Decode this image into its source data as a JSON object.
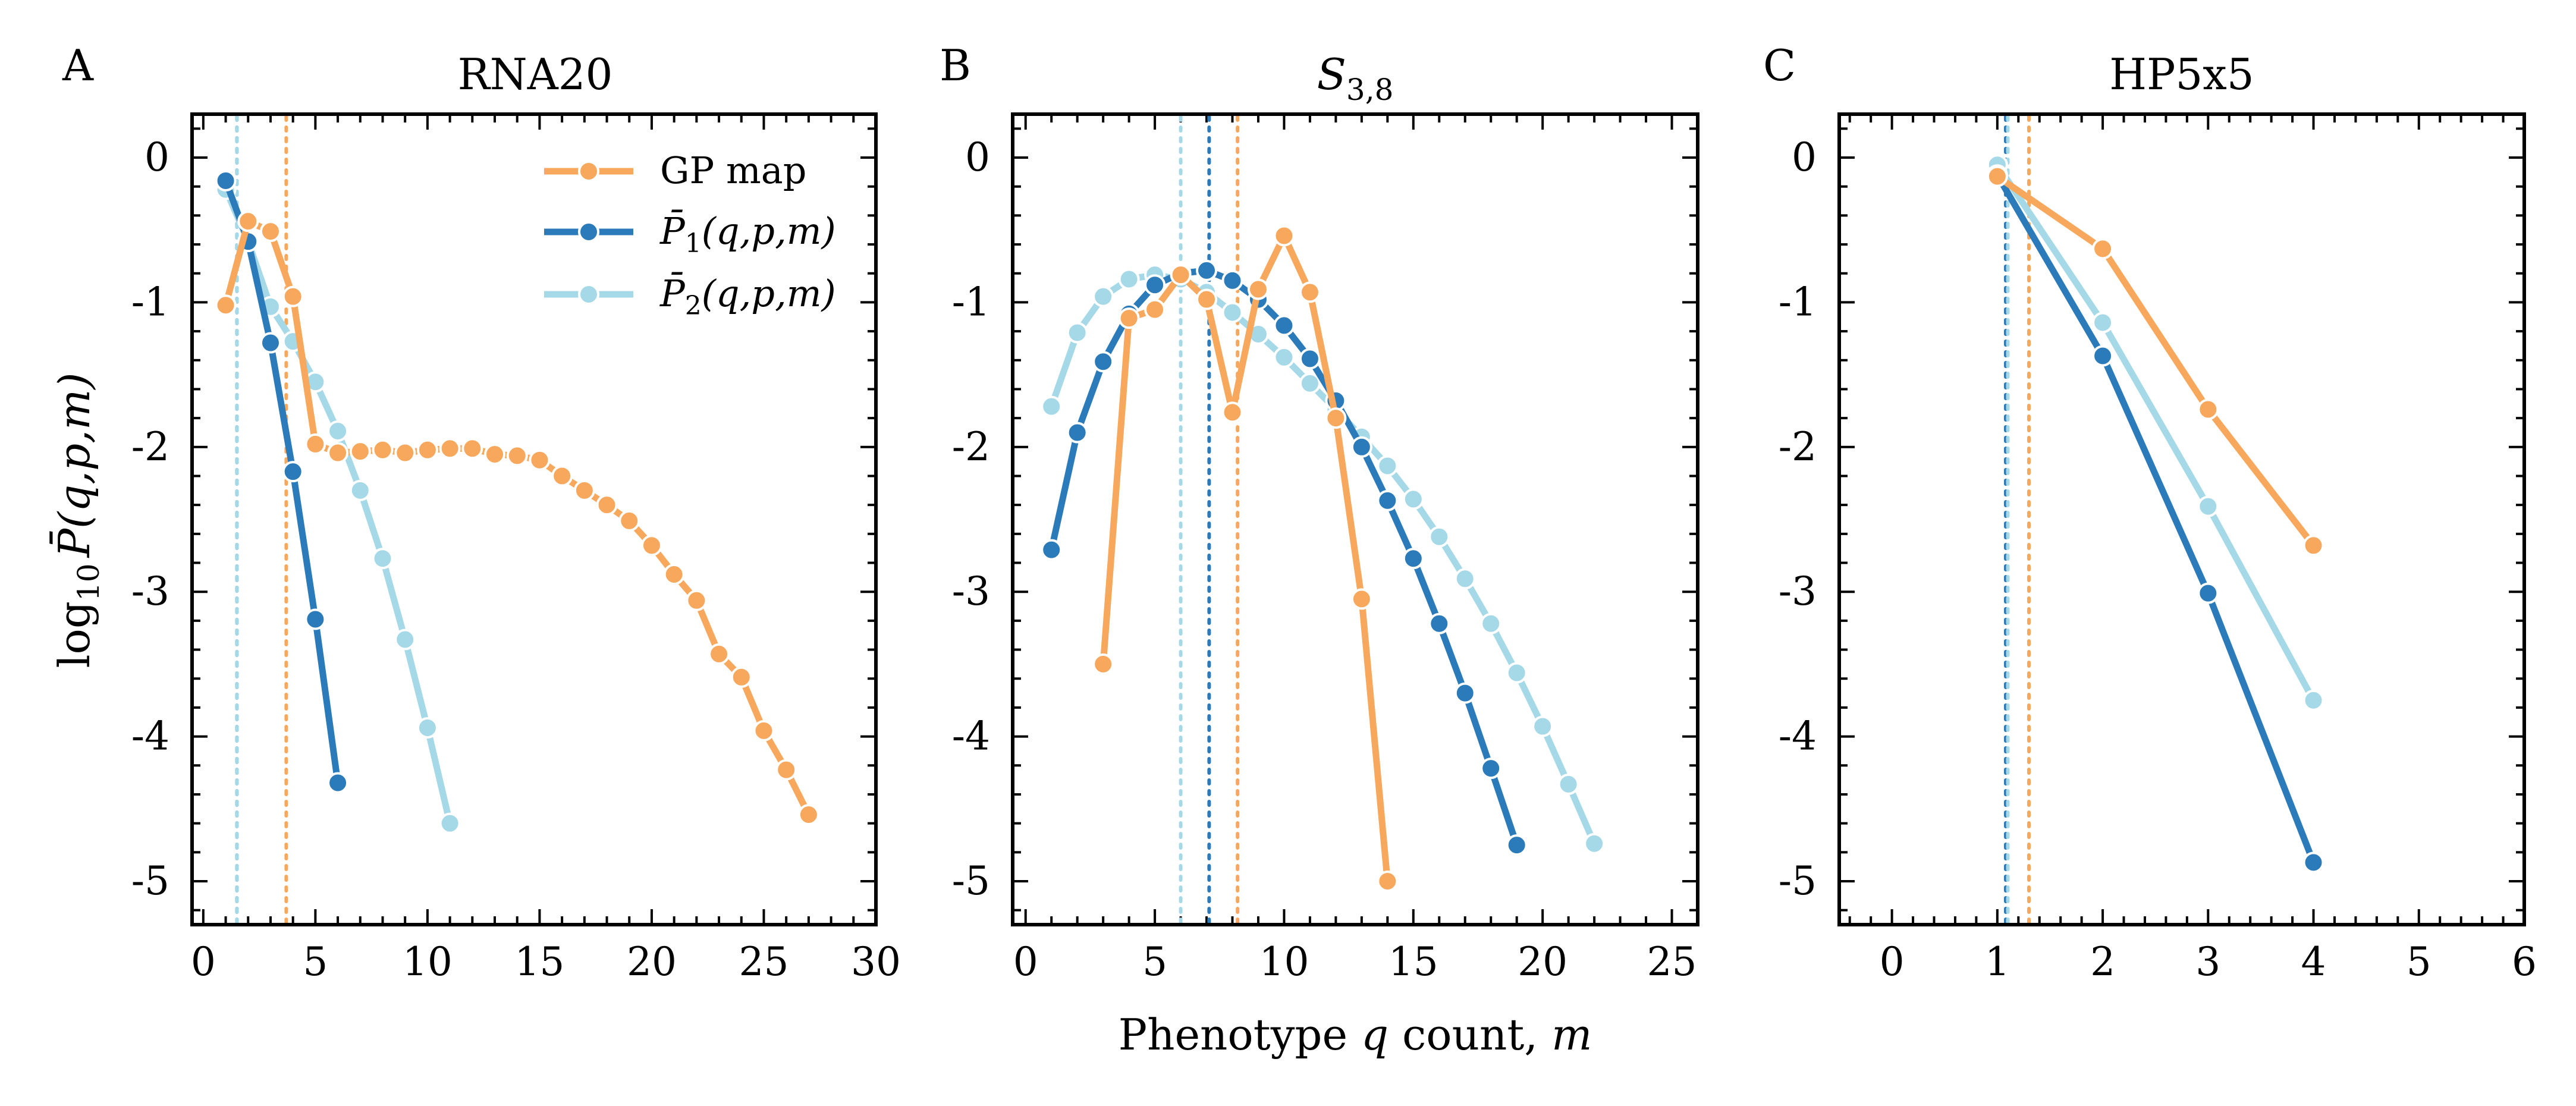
{
  "figure": {
    "shared_xlabel": "Phenotype q count, m",
    "shared_ylabel": "log10 P̄(q,p,m)",
    "colors": {
      "gp_map": "#F7A85C",
      "p1": "#2B7BBA",
      "p2": "#A6D9E8"
    },
    "legend": [
      {
        "key": "gp_map",
        "label": "GP map"
      },
      {
        "key": "p1",
        "label": "P̄1(q,p,m)"
      },
      {
        "key": "p2",
        "label": "P̄2(q,p,m)"
      }
    ]
  },
  "chart_data": [
    {
      "type": "line",
      "panel_letter": "A",
      "title": "RNA20",
      "xlim": [
        -0.5,
        30
      ],
      "ylim": [
        -5.3,
        0.3
      ],
      "xticks": [
        0,
        5,
        10,
        15,
        20,
        25,
        30
      ],
      "yticks": [
        0,
        -1,
        -2,
        -3,
        -4,
        -5
      ],
      "legend_position": "top-right",
      "series": [
        {
          "name": "GP map",
          "key": "gp_map",
          "x": [
            1,
            2,
            3,
            4,
            5,
            6,
            7,
            8,
            9,
            10,
            11,
            12,
            13,
            14,
            15,
            16,
            17,
            18,
            19,
            20,
            21,
            22,
            23,
            24,
            25,
            26,
            27
          ],
          "y": [
            -1.02,
            -0.44,
            -0.51,
            -0.96,
            -1.98,
            -2.04,
            -2.03,
            -2.02,
            -2.04,
            -2.02,
            -2.01,
            -2.01,
            -2.05,
            -2.06,
            -2.09,
            -2.2,
            -2.3,
            -2.4,
            -2.51,
            -2.68,
            -2.88,
            -3.06,
            -3.43,
            -3.59,
            -3.96,
            -4.23,
            -4.54
          ]
        },
        {
          "name": "P̄1(q,p,m)",
          "key": "p1",
          "x": [
            1,
            2,
            3,
            4,
            5,
            6
          ],
          "y": [
            -0.16,
            -0.58,
            -1.28,
            -2.17,
            -3.19,
            -4.32
          ]
        },
        {
          "name": "P̄2(q,p,m)",
          "key": "p2",
          "x": [
            1,
            2,
            3,
            4,
            5,
            6,
            7,
            8,
            9,
            10,
            11
          ],
          "y": [
            -0.22,
            -0.58,
            -1.03,
            -1.27,
            -1.55,
            -1.89,
            -2.3,
            -2.77,
            -3.33,
            -3.94,
            -4.6
          ]
        }
      ],
      "vlines": [
        {
          "key": "p1",
          "x": 1.5
        },
        {
          "key": "p2",
          "x": 1.5
        },
        {
          "key": "gp_map",
          "x": 3.7
        }
      ]
    },
    {
      "type": "line",
      "panel_letter": "B",
      "title": "S3,8",
      "title_main": "S",
      "title_sub": "3,8",
      "xlim": [
        -0.5,
        26
      ],
      "ylim": [
        -5.3,
        0.3
      ],
      "xticks": [
        0,
        5,
        10,
        15,
        20,
        25
      ],
      "yticks": [
        0,
        -1,
        -2,
        -3,
        -4,
        -5
      ],
      "series": [
        {
          "name": "GP map",
          "key": "gp_map",
          "x": [
            3,
            4,
            5,
            6,
            7,
            8,
            9,
            10,
            11,
            12,
            13,
            14
          ],
          "y": [
            -3.5,
            -1.11,
            -1.05,
            -0.81,
            -0.98,
            -1.76,
            -0.91,
            -0.54,
            -0.93,
            -1.8,
            -3.05,
            -5.0
          ]
        },
        {
          "name": "P̄1(q,p,m)",
          "key": "p1",
          "x": [
            1,
            2,
            3,
            4,
            5,
            6,
            7,
            8,
            9,
            10,
            11,
            12,
            13,
            14,
            15,
            16,
            17,
            18,
            19
          ],
          "y": [
            -2.71,
            -1.9,
            -1.41,
            -1.08,
            -0.88,
            -0.8,
            -0.78,
            -0.85,
            -0.98,
            -1.16,
            -1.39,
            -1.68,
            -2.0,
            -2.37,
            -2.77,
            -3.22,
            -3.7,
            -4.22,
            -4.75
          ]
        },
        {
          "name": "P̄2(q,p,m)",
          "key": "p2",
          "x": [
            1,
            2,
            3,
            4,
            5,
            6,
            7,
            8,
            9,
            10,
            11,
            12,
            13,
            14,
            15,
            16,
            17,
            18,
            19,
            20,
            21,
            22
          ],
          "y": [
            -1.72,
            -1.21,
            -0.96,
            -0.84,
            -0.81,
            -0.84,
            -0.93,
            -1.07,
            -1.22,
            -1.38,
            -1.56,
            -1.74,
            -1.93,
            -2.13,
            -2.36,
            -2.62,
            -2.91,
            -3.22,
            -3.56,
            -3.93,
            -4.33,
            -4.74
          ]
        }
      ],
      "vlines": [
        {
          "key": "p2",
          "x": 6.0
        },
        {
          "key": "p1",
          "x": 7.1
        },
        {
          "key": "gp_map",
          "x": 8.2
        }
      ]
    },
    {
      "type": "line",
      "panel_letter": "C",
      "title": "HP5x5",
      "xlim": [
        -0.5,
        6
      ],
      "ylim": [
        -5.3,
        0.3
      ],
      "xticks": [
        0,
        1,
        2,
        3,
        4,
        5,
        6
      ],
      "yticks": [
        0,
        -1,
        -2,
        -3,
        -4,
        -5
      ],
      "series": [
        {
          "name": "GP map",
          "key": "gp_map",
          "x": [
            1,
            2,
            3,
            4
          ],
          "y": [
            -0.13,
            -0.63,
            -1.74,
            -2.68
          ]
        },
        {
          "name": "P̄1(q,p,m)",
          "key": "p1",
          "x": [
            1,
            2,
            3,
            4
          ],
          "y": [
            -0.12,
            -1.37,
            -3.01,
            -4.87
          ]
        },
        {
          "name": "P̄2(q,p,m)",
          "key": "p2",
          "x": [
            1,
            2,
            3,
            4
          ],
          "y": [
            -0.05,
            -1.14,
            -2.41,
            -3.75
          ]
        }
      ],
      "vlines": [
        {
          "key": "p1",
          "x": 1.08
        },
        {
          "key": "p2",
          "x": 1.1
        },
        {
          "key": "gp_map",
          "x": 1.3
        }
      ]
    }
  ]
}
